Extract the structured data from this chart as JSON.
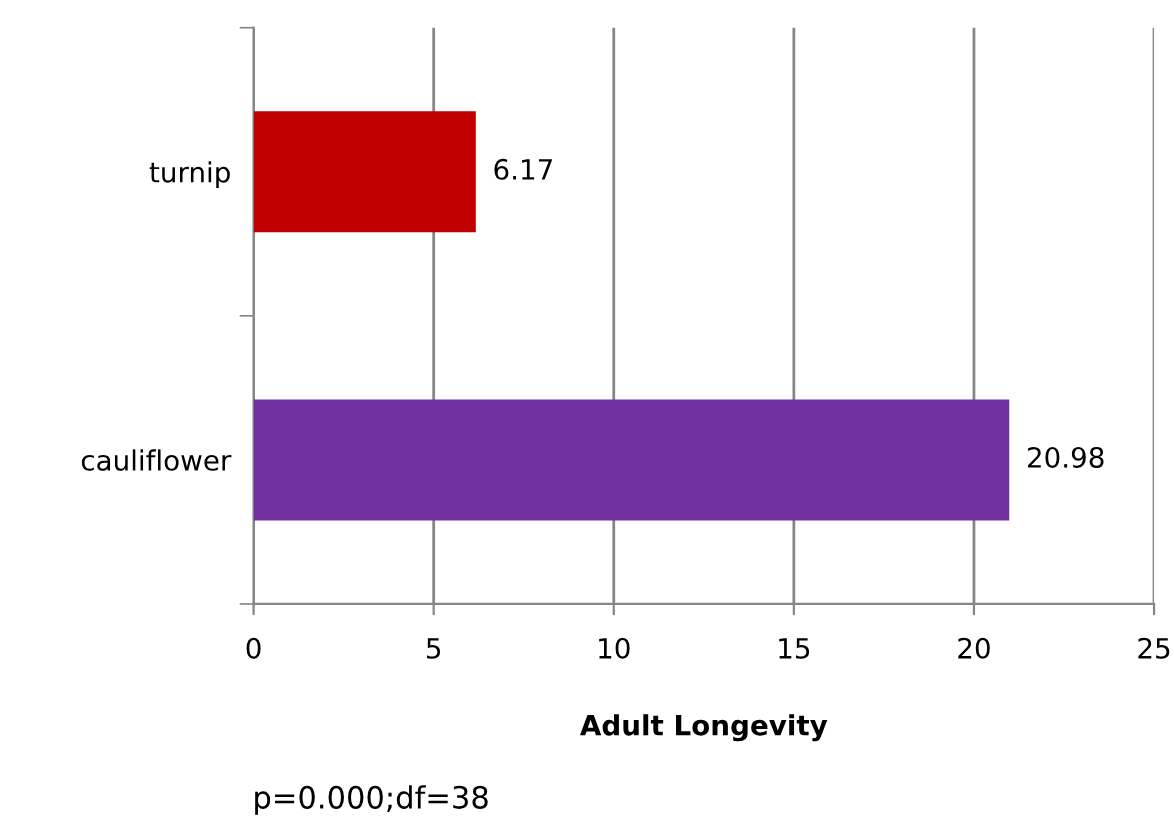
{
  "chart_data": {
    "type": "bar",
    "orientation": "horizontal",
    "categories": [
      "turnip",
      "cauliflower"
    ],
    "values": [
      6.17,
      20.98
    ],
    "colors": [
      "#c00000",
      "#7030a0"
    ],
    "xlim": [
      0,
      25
    ],
    "xticks": [
      0,
      5,
      10,
      15,
      20,
      25
    ],
    "xlabel": "Adult Longevity",
    "grid": "x",
    "data_labels": true,
    "annotations": [
      "p=0.000;df=38"
    ]
  }
}
